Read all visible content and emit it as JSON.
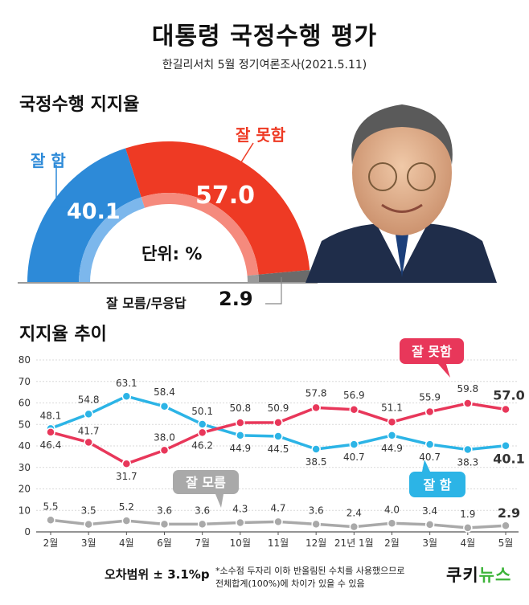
{
  "header": {
    "title": "대통령 국정수행 평가",
    "subtitle": "한길리서치 5월 정기여론조사(2021.5.11)"
  },
  "approval": {
    "section_title": "국정수행 지지율",
    "unit_label": "단위: %",
    "good_label": "잘 함",
    "good_value": "40.1",
    "bad_label": "잘 못함",
    "bad_value": "57.0",
    "unknown_label": "잘 모름/무응답",
    "unknown_value": "2.9",
    "colors": {
      "good": "#2d8ad8",
      "good_light": "#7cb7ec",
      "bad": "#ee3a24",
      "bad_light": "#f58a7d",
      "unknown": "#6b6b6b"
    }
  },
  "trend": {
    "section_title": "지지율 추이"
  },
  "footer": {
    "error_margin": "오차범위 ± 3.1%p",
    "note_line1": "*소수점 두자리 이하 반올림된 수치를 사용했으므로",
    "note_line2": "전체합계(100%)에 차이가 있을 수 있음",
    "logo_left": "쿠키",
    "logo_right": "뉴스"
  },
  "chart_data": [
    {
      "type": "pie",
      "categories": [
        "잘 함",
        "잘 못함",
        "잘 모름/무응답"
      ],
      "values": [
        40.1,
        57.0,
        2.9
      ]
    },
    {
      "type": "line",
      "categories": [
        "2월",
        "3월",
        "4월",
        "6월",
        "7월",
        "10월",
        "11월",
        "12월",
        "21년 1월",
        "2월",
        "3월",
        "4월",
        "5월"
      ],
      "ylim": [
        0,
        80
      ],
      "yticks": [
        0,
        10,
        20,
        30,
        40,
        50,
        60,
        70,
        80
      ],
      "grid": true,
      "series": [
        {
          "name": "잘 함",
          "color": "#2cb4e6",
          "values": [
            48.1,
            54.8,
            63.1,
            58.4,
            50.1,
            44.9,
            44.5,
            38.5,
            40.7,
            44.9,
            40.7,
            38.3,
            40.1
          ]
        },
        {
          "name": "잘 못함",
          "color": "#e8375a",
          "values": [
            46.4,
            41.7,
            31.7,
            38.0,
            46.2,
            50.8,
            50.9,
            57.8,
            56.9,
            51.1,
            55.9,
            59.8,
            57.0
          ]
        },
        {
          "name": "잘 모름",
          "color": "#a9a9a9",
          "values": [
            5.5,
            3.5,
            5.2,
            3.6,
            3.6,
            4.3,
            4.7,
            3.6,
            2.4,
            4.0,
            3.4,
            1.9,
            2.9
          ]
        }
      ]
    }
  ]
}
